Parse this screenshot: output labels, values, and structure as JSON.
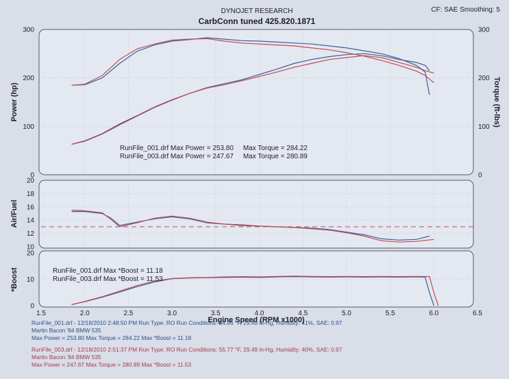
{
  "header": {
    "company": "DYNOJET RESEARCH",
    "title": "CarbConn tuned  425.820.1871",
    "cf": "CF: SAE  Smoothing: 5"
  },
  "colors": {
    "run1": "#3a5f9a",
    "run2": "#c04a52",
    "afr_target": "#c04a52"
  },
  "chart_data": [
    {
      "type": "line",
      "panel": "power-torque",
      "ylabel": "Power (hp)",
      "y2label": "Torque (ft-lbs)",
      "xlim": [
        1.5,
        6.5
      ],
      "ylim": [
        0,
        300
      ],
      "y2lim": [
        0,
        300
      ],
      "yticks": [
        0,
        100,
        200,
        300
      ],
      "grid": true,
      "annotations": [
        "RunFile_001.drf Max Power = 253.80     Max Torque = 284.22",
        "RunFile_003.drf Max Power = 247.67     Max Torque = 280.89"
      ],
      "series": [
        {
          "name": "RunFile_001.drf",
          "measure": "power",
          "x": [
            1.85,
            2.0,
            2.2,
            2.4,
            2.6,
            2.8,
            3.0,
            3.2,
            3.4,
            3.6,
            3.8,
            4.0,
            4.2,
            4.4,
            4.6,
            4.8,
            5.0,
            5.2,
            5.4,
            5.6,
            5.8,
            5.9,
            5.95
          ],
          "y": [
            63,
            70,
            85,
            105,
            122,
            140,
            155,
            168,
            180,
            188,
            196,
            207,
            218,
            230,
            238,
            244,
            248,
            250,
            246,
            238,
            232,
            226,
            215
          ]
        },
        {
          "name": "RunFile_003.drf",
          "measure": "power",
          "x": [
            1.85,
            2.0,
            2.2,
            2.4,
            2.6,
            2.8,
            3.0,
            3.2,
            3.4,
            3.6,
            3.8,
            4.0,
            4.2,
            4.4,
            4.6,
            4.8,
            5.0,
            5.2,
            5.4,
            5.6,
            5.8,
            5.9,
            6.0
          ],
          "y": [
            63,
            69,
            84,
            103,
            121,
            139,
            154,
            168,
            179,
            186,
            194,
            203,
            212,
            222,
            230,
            238,
            242,
            246,
            242,
            232,
            222,
            215,
            210
          ]
        },
        {
          "name": "RunFile_001.drf",
          "measure": "torque",
          "x": [
            1.85,
            2.0,
            2.2,
            2.4,
            2.6,
            2.8,
            3.0,
            3.2,
            3.4,
            3.6,
            3.8,
            4.0,
            4.2,
            4.4,
            4.6,
            4.8,
            5.0,
            5.2,
            5.4,
            5.6,
            5.8,
            5.9,
            5.95
          ],
          "y": [
            185,
            186,
            200,
            230,
            255,
            268,
            276,
            279,
            283,
            280,
            277,
            276,
            274,
            272,
            270,
            266,
            262,
            256,
            250,
            240,
            226,
            212,
            165
          ]
        },
        {
          "name": "RunFile_003.drf",
          "measure": "torque",
          "x": [
            1.85,
            2.0,
            2.2,
            2.4,
            2.6,
            2.8,
            3.0,
            3.2,
            3.4,
            3.6,
            3.8,
            4.0,
            4.2,
            4.4,
            4.6,
            4.8,
            5.0,
            5.2,
            5.4,
            5.6,
            5.8,
            5.9,
            6.0
          ],
          "y": [
            185,
            187,
            205,
            238,
            260,
            270,
            278,
            280,
            281,
            276,
            272,
            270,
            268,
            266,
            262,
            258,
            252,
            245,
            236,
            226,
            214,
            205,
            190
          ]
        }
      ]
    },
    {
      "type": "line",
      "panel": "air-fuel",
      "ylabel": "Air/Fuel",
      "xlim": [
        1.5,
        6.5
      ],
      "ylim": [
        10,
        20
      ],
      "yticks": [
        10,
        12,
        14,
        16,
        18,
        20
      ],
      "grid": true,
      "target": 13.0,
      "series": [
        {
          "name": "RunFile_001.drf",
          "x": [
            1.85,
            2.0,
            2.2,
            2.3,
            2.4,
            2.6,
            2.8,
            3.0,
            3.2,
            3.4,
            3.6,
            3.8,
            4.0,
            4.2,
            4.4,
            4.6,
            4.8,
            5.0,
            5.2,
            5.4,
            5.6,
            5.8,
            5.95
          ],
          "y": [
            15.3,
            15.3,
            15.0,
            14.3,
            13.2,
            13.7,
            14.2,
            14.5,
            14.2,
            13.6,
            13.4,
            13.2,
            13.1,
            13.0,
            12.9,
            12.8,
            12.6,
            12.2,
            11.8,
            11.2,
            11.0,
            11.1,
            11.6
          ]
        },
        {
          "name": "RunFile_003.drf",
          "x": [
            1.85,
            2.0,
            2.2,
            2.3,
            2.4,
            2.6,
            2.8,
            3.0,
            3.2,
            3.4,
            3.6,
            3.8,
            4.0,
            4.2,
            4.4,
            4.6,
            4.8,
            5.0,
            5.2,
            5.4,
            5.6,
            5.8,
            6.0
          ],
          "y": [
            15.5,
            15.4,
            15.1,
            14.1,
            13.0,
            13.6,
            14.3,
            14.6,
            14.3,
            13.7,
            13.4,
            13.3,
            13.1,
            13.0,
            12.9,
            12.7,
            12.5,
            12.1,
            11.6,
            10.9,
            10.7,
            10.8,
            11.1
          ]
        }
      ]
    },
    {
      "type": "line",
      "panel": "boost",
      "ylabel": "*Boost",
      "xlabel": "Engine Speed (RPM x1000)",
      "xlim": [
        1.5,
        6.5
      ],
      "ylim": [
        0,
        20
      ],
      "yticks": [
        0,
        10,
        20
      ],
      "xticks": [
        1.5,
        2.0,
        2.5,
        3.0,
        3.5,
        4.0,
        4.5,
        5.0,
        5.5,
        6.0,
        6.5
      ],
      "grid": true,
      "annotations": [
        "RunFile_001.drf Max *Boost = 11.18",
        "RunFile_003.drf Max *Boost = 11.53"
      ],
      "series": [
        {
          "name": "RunFile_001.drf",
          "x": [
            1.85,
            2.0,
            2.2,
            2.4,
            2.6,
            2.8,
            3.0,
            3.2,
            3.4,
            3.6,
            3.8,
            4.0,
            4.2,
            4.4,
            4.6,
            4.8,
            5.0,
            5.2,
            5.4,
            5.6,
            5.8,
            5.9,
            5.95,
            6.0
          ],
          "y": [
            0.4,
            1.5,
            3.2,
            5.2,
            7.2,
            9.0,
            10.2,
            10.5,
            10.6,
            10.7,
            10.8,
            10.7,
            10.9,
            11.0,
            10.9,
            10.8,
            10.9,
            10.8,
            10.9,
            10.8,
            10.9,
            10.8,
            5.0,
            0.0
          ]
        },
        {
          "name": "RunFile_003.drf",
          "x": [
            1.85,
            2.0,
            2.2,
            2.4,
            2.6,
            2.8,
            3.0,
            3.2,
            3.4,
            3.6,
            3.8,
            4.0,
            4.2,
            4.4,
            4.6,
            4.8,
            5.0,
            5.2,
            5.4,
            5.6,
            5.8,
            5.95,
            6.0,
            6.05
          ],
          "y": [
            0.4,
            1.6,
            3.4,
            5.5,
            7.6,
            9.3,
            10.3,
            10.6,
            10.7,
            10.9,
            11.0,
            10.9,
            11.1,
            11.2,
            11.1,
            11.0,
            11.1,
            11.0,
            11.1,
            11.0,
            11.1,
            11.0,
            5.0,
            0.0
          ]
        }
      ]
    }
  ],
  "footer": {
    "run1_line1": "RunFile_001.drf - 12/18/2010 2:48:50 PM  Run Type: RO  Run Conditions: 54.86 °F, 29.49 in-Hg,  Humidity: 41%, SAE: 0.97",
    "run1_line2": "Martin Bacon '84 BMW 535",
    "run1_line3": "Max Power = 253.80  Max Torque = 284.22  Max *Boost = 11.18",
    "run2_line1": "RunFile_003.drf - 12/18/2010 2:51:37 PM  Run Type: RO  Run Conditions: 55.77 °F, 29.49 in-Hg,  Humidity: 40%, SAE: 0.97",
    "run2_line2": "Martin Bacon '84 BMW 535",
    "run2_line3": "Max Power = 247.67  Max Torque = 280.89  Max *Boost = 11.53"
  }
}
